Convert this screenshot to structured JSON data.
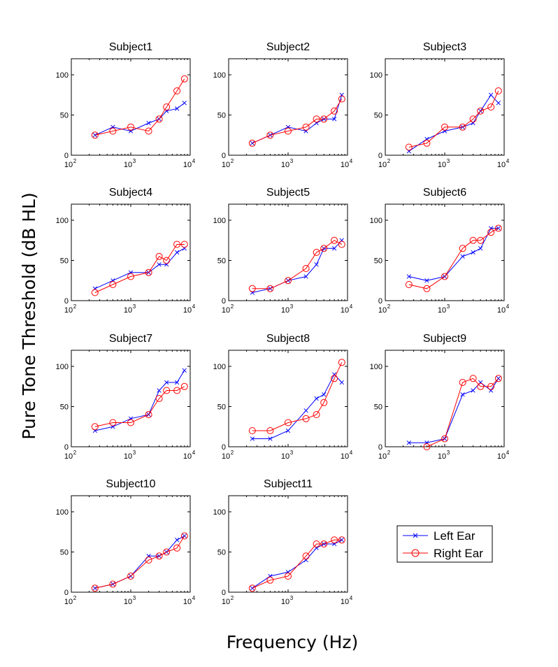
{
  "figure": {
    "ylabel": "Pure Tone Threshold (dB HL)",
    "xlabel": "Frequency (Hz)"
  },
  "legend": [
    {
      "label": "Left Ear",
      "color": "#0000ff",
      "marker": "x"
    },
    {
      "label": "Right Ear",
      "color": "#ff0000",
      "marker": "o"
    }
  ],
  "axis_ticks": {
    "y": [
      "0",
      "50",
      "100"
    ],
    "x_base": "10",
    "x_exp": [
      "2",
      "3",
      "4"
    ]
  },
  "chart_data": [
    {
      "type": "line",
      "title": "Subject1",
      "xscale": "log",
      "xlim": [
        100,
        10000
      ],
      "ylim": [
        0,
        120
      ],
      "x": [
        250,
        500,
        1000,
        2000,
        3000,
        4000,
        6000,
        8000
      ],
      "series": [
        {
          "name": "Left Ear",
          "values": [
            25,
            35,
            30,
            40,
            45,
            55,
            58,
            65
          ]
        },
        {
          "name": "Right Ear",
          "values": [
            25,
            30,
            35,
            30,
            45,
            60,
            80,
            95
          ]
        }
      ]
    },
    {
      "type": "line",
      "title": "Subject2",
      "xscale": "log",
      "xlim": [
        100,
        10000
      ],
      "ylim": [
        0,
        120
      ],
      "x": [
        250,
        500,
        1000,
        2000,
        3000,
        4000,
        6000,
        8000
      ],
      "series": [
        {
          "name": "Left Ear",
          "values": [
            15,
            25,
            35,
            30,
            40,
            45,
            45,
            75
          ]
        },
        {
          "name": "Right Ear",
          "values": [
            15,
            25,
            30,
            35,
            45,
            45,
            55,
            70
          ]
        }
      ]
    },
    {
      "type": "line",
      "title": "Subject3",
      "xscale": "log",
      "xlim": [
        100,
        10000
      ],
      "ylim": [
        0,
        120
      ],
      "x": [
        250,
        500,
        1000,
        2000,
        3000,
        4000,
        6000,
        8000
      ],
      "series": [
        {
          "name": "Left Ear",
          "values": [
            5,
            20,
            30,
            35,
            40,
            55,
            75,
            65
          ]
        },
        {
          "name": "Right Ear",
          "values": [
            10,
            15,
            35,
            35,
            45,
            55,
            60,
            80
          ]
        }
      ]
    },
    {
      "type": "line",
      "title": "Subject4",
      "xscale": "log",
      "xlim": [
        100,
        10000
      ],
      "ylim": [
        0,
        120
      ],
      "x": [
        250,
        500,
        1000,
        2000,
        3000,
        4000,
        6000,
        8000
      ],
      "series": [
        {
          "name": "Left Ear",
          "values": [
            15,
            25,
            35,
            35,
            45,
            45,
            60,
            65
          ]
        },
        {
          "name": "Right Ear",
          "values": [
            10,
            20,
            30,
            35,
            55,
            50,
            70,
            70
          ]
        }
      ]
    },
    {
      "type": "line",
      "title": "Subject5",
      "xscale": "log",
      "xlim": [
        100,
        10000
      ],
      "ylim": [
        0,
        120
      ],
      "x": [
        250,
        500,
        1000,
        2000,
        3000,
        4000,
        6000,
        8000
      ],
      "series": [
        {
          "name": "Left Ear",
          "values": [
            10,
            15,
            25,
            30,
            45,
            65,
            65,
            75
          ]
        },
        {
          "name": "Right Ear",
          "values": [
            15,
            15,
            25,
            40,
            60,
            65,
            75,
            70
          ]
        }
      ]
    },
    {
      "type": "line",
      "title": "Subject6",
      "xscale": "log",
      "xlim": [
        100,
        10000
      ],
      "ylim": [
        0,
        120
      ],
      "x": [
        250,
        500,
        1000,
        2000,
        3000,
        4000,
        6000,
        8000
      ],
      "series": [
        {
          "name": "Left Ear",
          "values": [
            30,
            25,
            30,
            55,
            60,
            65,
            90,
            90
          ]
        },
        {
          "name": "Right Ear",
          "values": [
            20,
            15,
            30,
            65,
            75,
            75,
            85,
            90
          ]
        }
      ]
    },
    {
      "type": "line",
      "title": "Subject7",
      "xscale": "log",
      "xlim": [
        100,
        10000
      ],
      "ylim": [
        0,
        120
      ],
      "x": [
        250,
        500,
        1000,
        2000,
        3000,
        4000,
        6000,
        8000
      ],
      "series": [
        {
          "name": "Left Ear",
          "values": [
            20,
            25,
            35,
            40,
            70,
            80,
            80,
            95
          ]
        },
        {
          "name": "Right Ear",
          "values": [
            25,
            30,
            30,
            40,
            60,
            70,
            70,
            75
          ]
        }
      ]
    },
    {
      "type": "line",
      "title": "Subject8",
      "xscale": "log",
      "xlim": [
        100,
        10000
      ],
      "ylim": [
        0,
        120
      ],
      "x": [
        250,
        500,
        1000,
        2000,
        3000,
        4000,
        6000,
        8000
      ],
      "series": [
        {
          "name": "Left Ear",
          "values": [
            10,
            10,
            20,
            45,
            60,
            65,
            90,
            80
          ]
        },
        {
          "name": "Right Ear",
          "values": [
            20,
            20,
            30,
            35,
            40,
            55,
            85,
            105
          ]
        }
      ]
    },
    {
      "type": "line",
      "title": "Subject9",
      "xscale": "log",
      "xlim": [
        100,
        10000
      ],
      "ylim": [
        0,
        120
      ],
      "x": [
        250,
        500,
        1000,
        2000,
        3000,
        4000,
        6000,
        8000
      ],
      "series": [
        {
          "name": "Left Ear",
          "values": [
            5,
            5,
            10,
            65,
            70,
            80,
            70,
            85
          ]
        },
        {
          "name": "Right Ear",
          "values": [
            null,
            0,
            10,
            80,
            85,
            75,
            75,
            85
          ]
        }
      ]
    },
    {
      "type": "line",
      "title": "Subject10",
      "xscale": "log",
      "xlim": [
        100,
        10000
      ],
      "ylim": [
        0,
        120
      ],
      "x": [
        250,
        500,
        1000,
        2000,
        3000,
        4000,
        6000,
        8000
      ],
      "series": [
        {
          "name": "Left Ear",
          "values": [
            5,
            10,
            20,
            45,
            45,
            50,
            65,
            70
          ]
        },
        {
          "name": "Right Ear",
          "values": [
            5,
            10,
            20,
            40,
            45,
            50,
            55,
            70
          ]
        }
      ]
    },
    {
      "type": "line",
      "title": "Subject11",
      "xscale": "log",
      "xlim": [
        100,
        10000
      ],
      "ylim": [
        0,
        120
      ],
      "x": [
        250,
        500,
        1000,
        2000,
        3000,
        4000,
        6000,
        8000
      ],
      "series": [
        {
          "name": "Left Ear",
          "values": [
            5,
            20,
            25,
            40,
            55,
            60,
            60,
            65
          ]
        },
        {
          "name": "Right Ear",
          "values": [
            5,
            15,
            20,
            45,
            60,
            60,
            65,
            65
          ]
        }
      ]
    }
  ]
}
